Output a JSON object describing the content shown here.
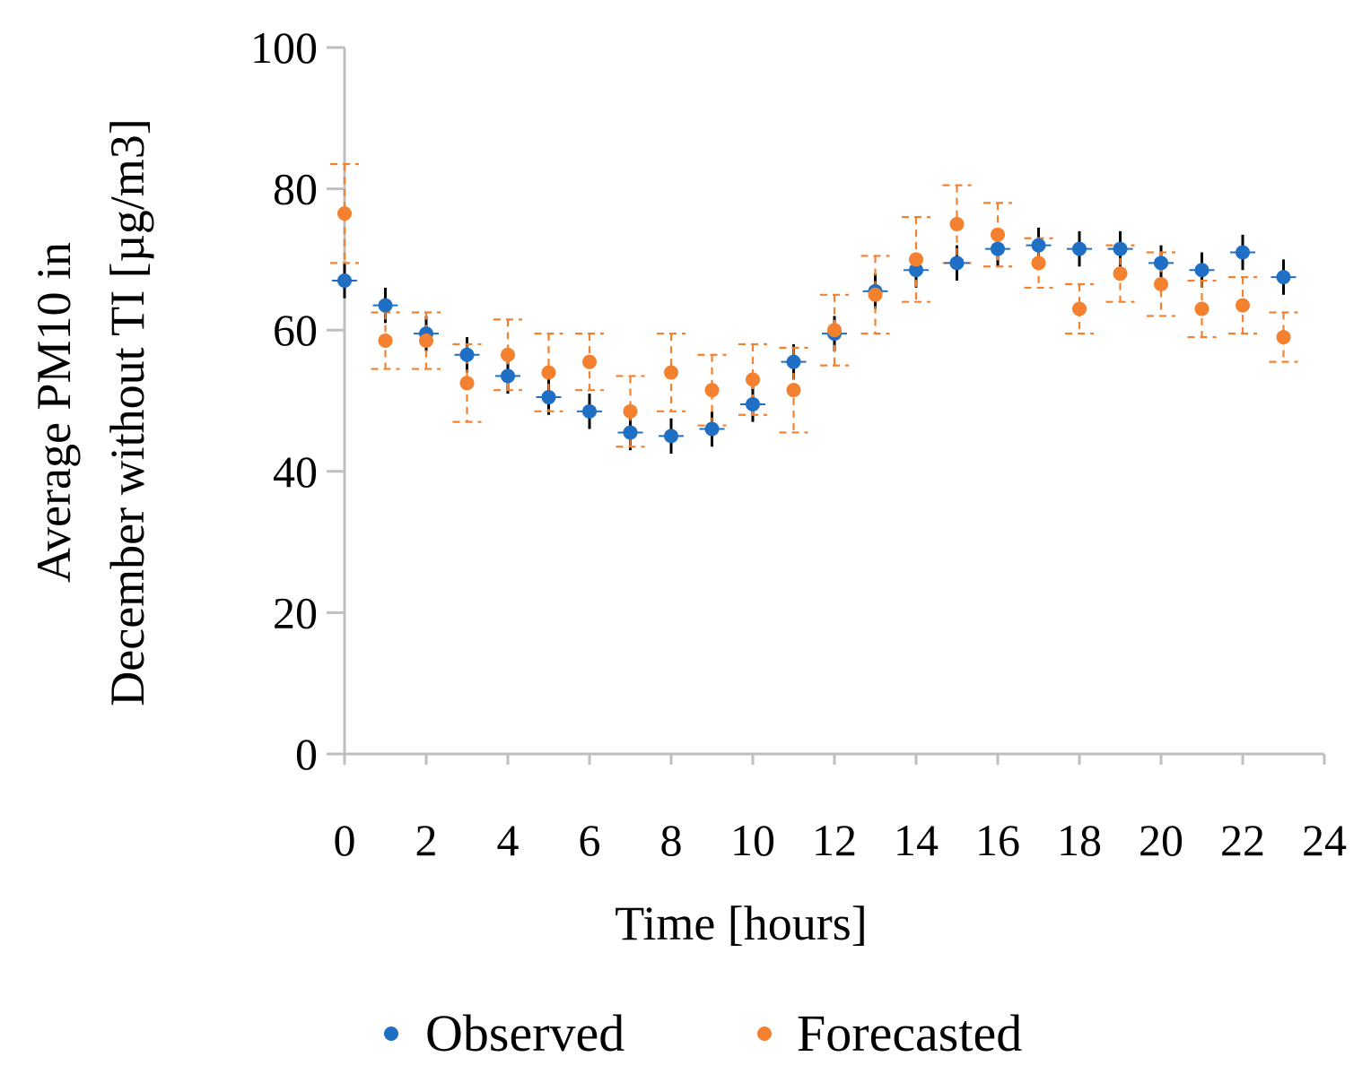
{
  "chart_data": {
    "type": "scatter",
    "title": "",
    "xlabel": "Time [hours]",
    "ylabel_lines": [
      "Average PM10 in",
      "December without TI [µg/m3]"
    ],
    "xlim": [
      0,
      24
    ],
    "ylim": [
      0,
      100
    ],
    "x_ticks": [
      0,
      2,
      4,
      6,
      8,
      10,
      12,
      14,
      16,
      18,
      20,
      22,
      24
    ],
    "y_ticks": [
      0,
      20,
      40,
      60,
      80,
      100
    ],
    "grid": false,
    "legend_position": "bottom",
    "series": [
      {
        "name": "Observed",
        "color": "#1f6fc5",
        "error_bar_color": "#000000",
        "x": [
          0,
          1,
          2,
          3,
          4,
          5,
          6,
          7,
          8,
          9,
          10,
          11,
          12,
          13,
          14,
          15,
          16,
          17,
          18,
          19,
          20,
          21,
          22,
          23
        ],
        "y": [
          67,
          63.5,
          59.5,
          56.5,
          53.5,
          50.5,
          48.5,
          45.5,
          45,
          46,
          49.5,
          55.5,
          59.5,
          65.5,
          68.5,
          69.5,
          71.5,
          72,
          71.5,
          71.5,
          69.5,
          68.5,
          71,
          67.5
        ],
        "err": [
          2.5,
          2.5,
          2.5,
          2.5,
          2.5,
          2.5,
          2.5,
          2.5,
          2.5,
          2.5,
          2.5,
          2.5,
          2.5,
          2.5,
          2.5,
          2.5,
          2.5,
          2.5,
          2.5,
          2.5,
          2.5,
          2.5,
          2.5,
          2.5
        ]
      },
      {
        "name": "Forecasted",
        "color": "#f4812f",
        "error_bar_color": "#f4812f",
        "x": [
          0,
          1,
          2,
          3,
          4,
          5,
          6,
          7,
          8,
          9,
          10,
          11,
          12,
          13,
          14,
          15,
          16,
          17,
          18,
          19,
          20,
          21,
          22,
          23
        ],
        "y": [
          76.5,
          58.5,
          58.5,
          52.5,
          56.5,
          54,
          55.5,
          48.5,
          54,
          51.5,
          53,
          51.5,
          60,
          65,
          70,
          75,
          73.5,
          69.5,
          63,
          68,
          66.5,
          63,
          63.5,
          59
        ],
        "err": [
          7,
          4,
          4,
          5.5,
          5,
          5.5,
          4,
          5,
          5.5,
          5,
          5,
          6,
          5,
          5.5,
          6,
          5.5,
          4.5,
          3.5,
          3.5,
          4,
          4.5,
          4,
          4,
          3.5
        ]
      }
    ]
  }
}
